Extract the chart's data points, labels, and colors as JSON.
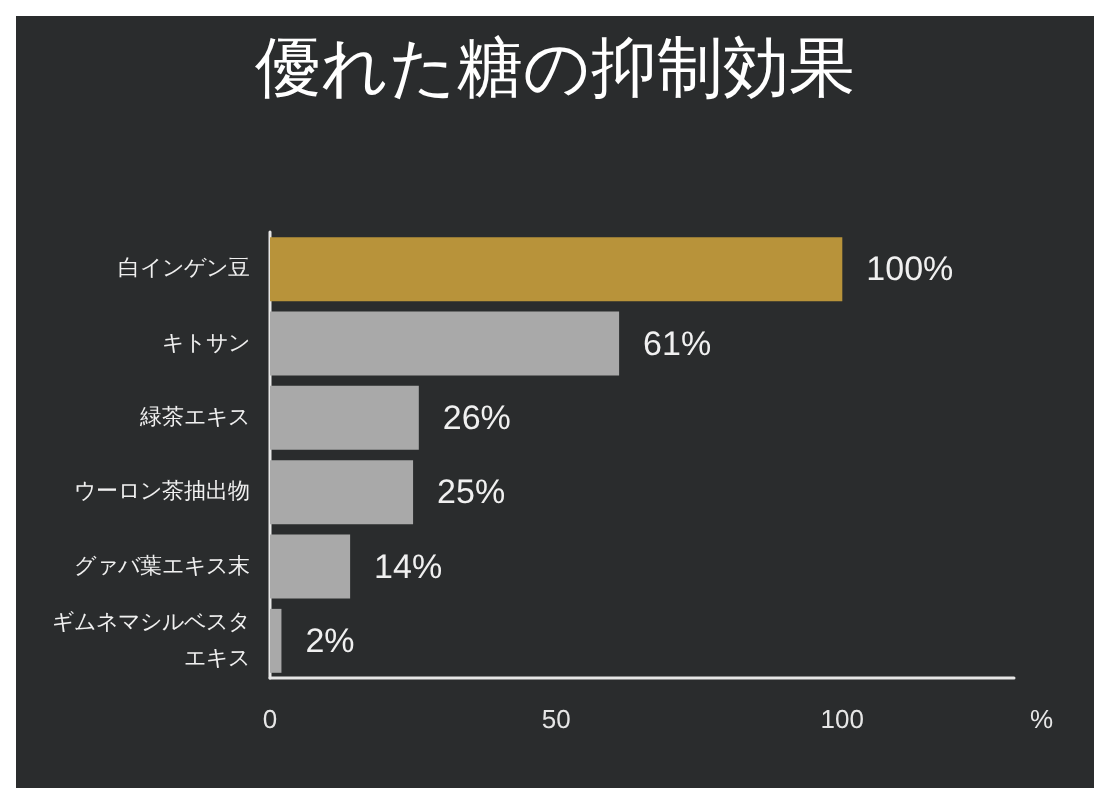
{
  "chart_data": {
    "type": "bar",
    "orientation": "horizontal",
    "title": "優れた糖の抑制効果",
    "xlabel": "%",
    "categories": [
      "白インゲン豆",
      "キトサン",
      "緑茶エキス",
      "ウーロン茶抽出物",
      "グァバ葉エキス末",
      "ギムネマシルベスタエキス"
    ],
    "values": [
      100,
      61,
      26,
      25,
      14,
      2
    ],
    "colors": [
      "#b8933a",
      "#a9a9a9",
      "#a9a9a9",
      "#a9a9a9",
      "#a9a9a9",
      "#a9a9a9"
    ],
    "value_labels": [
      "100%",
      "61%",
      "26%",
      "25%",
      "14%",
      "2%"
    ],
    "xlim": [
      0,
      130
    ],
    "xticks": [
      0,
      50,
      100
    ],
    "grid": false
  }
}
